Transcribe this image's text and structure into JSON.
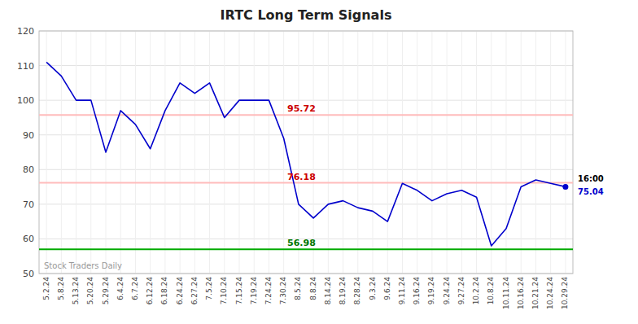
{
  "chart_data": {
    "type": "line",
    "title": "IRTC Long Term Signals",
    "categories": [
      "5.2.24",
      "5.8.24",
      "5.13.24",
      "5.20.24",
      "5.29.24",
      "6.4.24",
      "6.7.24",
      "6.12.24",
      "6.18.24",
      "6.24.24",
      "6.27.24",
      "7.5.24",
      "7.10.24",
      "7.15.24",
      "7.19.24",
      "7.24.24",
      "7.30.24",
      "8.5.24",
      "8.8.24",
      "8.14.24",
      "8.19.24",
      "8.28.24",
      "9.3.24",
      "9.6.24",
      "9.11.24",
      "9.16.24",
      "9.19.24",
      "9.24.24",
      "9.27.24",
      "10.2.24",
      "10.8.24",
      "10.11.24",
      "10.16.24",
      "10.21.24",
      "10.24.24",
      "10.29.24"
    ],
    "values": [
      111,
      107,
      100,
      100,
      85,
      97,
      93,
      86,
      97,
      105,
      102,
      105,
      95,
      100,
      100,
      100,
      89,
      70,
      66,
      70,
      71,
      69,
      68,
      65,
      76,
      74,
      71,
      73,
      74,
      72,
      58,
      63,
      75,
      77,
      76,
      75.04
    ],
    "color": "#0000cc",
    "ylim": [
      50,
      120
    ],
    "yticks": [
      50,
      60,
      70,
      80,
      90,
      100,
      110,
      120
    ],
    "grid": true,
    "reference_lines": [
      {
        "value": 95.72,
        "label": "95.72",
        "color": "#ffbbbb",
        "label_color": "#cc0000"
      },
      {
        "value": 76.18,
        "label": "76.18",
        "color": "#ffbbbb",
        "label_color": "#cc0000"
      },
      {
        "value": 56.98,
        "label": "56.98",
        "color": "#00aa00",
        "label_color": "#007700"
      }
    ],
    "last_time": "16:00",
    "last_label": "75.04",
    "watermark": "Stock Traders Daily"
  }
}
